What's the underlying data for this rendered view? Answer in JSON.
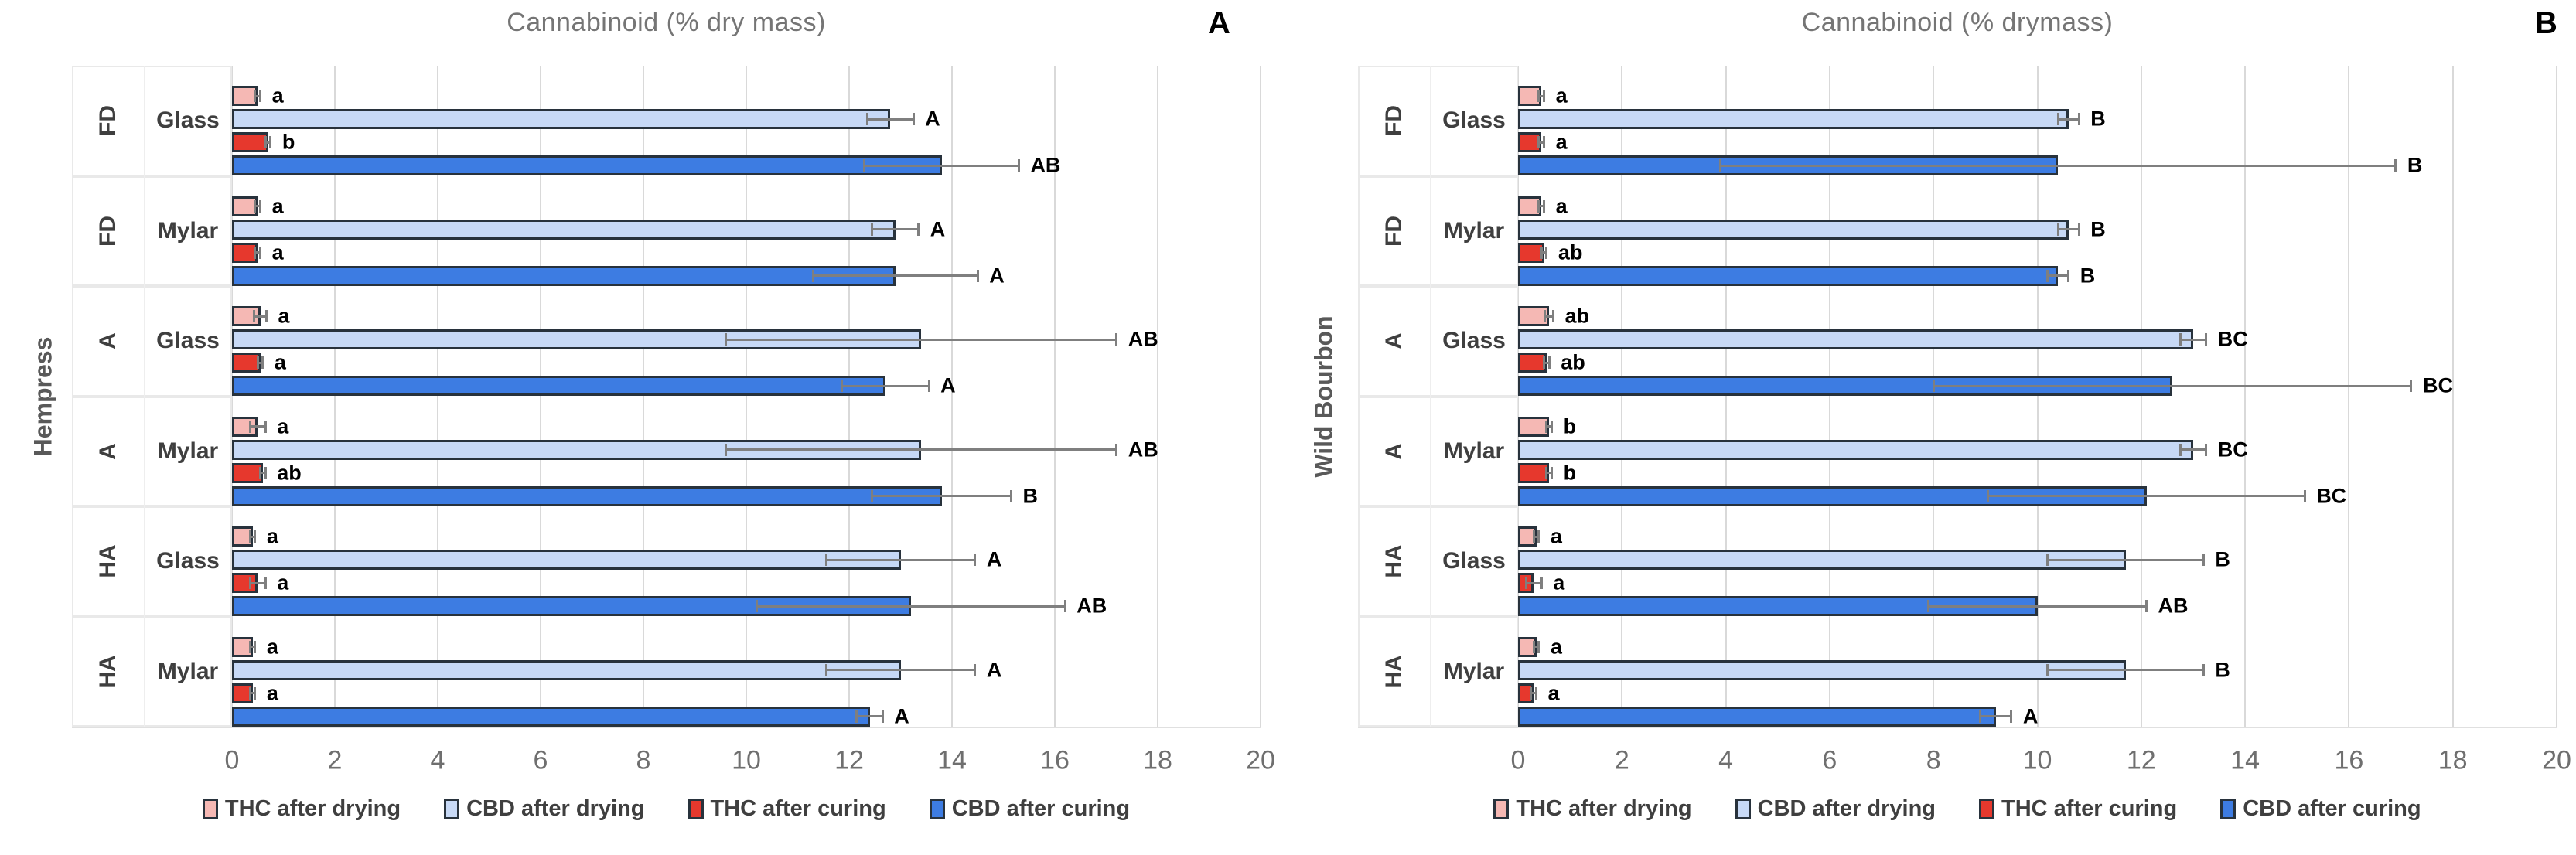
{
  "styles": {
    "bar_border": "#28323c",
    "grid_color": "#d9d9d9",
    "error_color": "#7f7f7f",
    "title_color": "#757575",
    "tick_color": "#6f6f6f",
    "label_color": "#3f3f3f",
    "letter_color": "#000000",
    "background": "#ffffff"
  },
  "legend": {
    "items": [
      {
        "label": "THC after drying",
        "color": "#f5b8b4"
      },
      {
        "label": "CBD after drying",
        "color": "#c7d9f6"
      },
      {
        "label": "THC after curing",
        "color": "#e6382d"
      },
      {
        "label": "CBD after curing",
        "color": "#3d7ce2"
      }
    ]
  },
  "chart_data": [
    {
      "type": "bar",
      "orientation": "horizontal",
      "panel_letter": "A",
      "title": "Cannabinoid (% dry mass)",
      "variety": "Hempress",
      "xlim": [
        0,
        20
      ],
      "xticks": [
        0,
        2,
        4,
        6,
        8,
        10,
        12,
        14,
        16,
        18,
        20
      ],
      "grid": true,
      "series_order": [
        "THC after drying",
        "CBD after drying",
        "THC after curing",
        "CBD after curing"
      ],
      "groups": [
        {
          "storage": "FD",
          "container": "Glass",
          "bars": [
            {
              "series": "THC after drying",
              "value": 0.5,
              "error": 0.05,
              "letter": "a"
            },
            {
              "series": "CBD after drying",
              "value": 12.8,
              "error": 0.45,
              "letter": "A"
            },
            {
              "series": "THC after curing",
              "value": 0.7,
              "error": 0.05,
              "letter": "b"
            },
            {
              "series": "CBD after curing",
              "value": 13.8,
              "error": 1.5,
              "letter": "AB"
            }
          ]
        },
        {
          "storage": "FD",
          "container": "Mylar",
          "bars": [
            {
              "series": "THC after drying",
              "value": 0.5,
              "error": 0.05,
              "letter": "a"
            },
            {
              "series": "CBD after drying",
              "value": 12.9,
              "error": 0.45,
              "letter": "A"
            },
            {
              "series": "THC after curing",
              "value": 0.5,
              "error": 0.05,
              "letter": "a"
            },
            {
              "series": "CBD after curing",
              "value": 12.9,
              "error": 1.6,
              "letter": "A"
            }
          ]
        },
        {
          "storage": "A",
          "container": "Glass",
          "bars": [
            {
              "series": "THC after drying",
              "value": 0.55,
              "error": 0.12,
              "letter": "a"
            },
            {
              "series": "CBD after drying",
              "value": 13.4,
              "error": 3.8,
              "letter": "AB"
            },
            {
              "series": "THC after curing",
              "value": 0.55,
              "error": 0.05,
              "letter": "a"
            },
            {
              "series": "CBD after curing",
              "value": 12.7,
              "error": 0.85,
              "letter": "A"
            }
          ]
        },
        {
          "storage": "A",
          "container": "Mylar",
          "bars": [
            {
              "series": "THC after drying",
              "value": 0.5,
              "error": 0.15,
              "letter": "a"
            },
            {
              "series": "CBD after drying",
              "value": 13.4,
              "error": 3.8,
              "letter": "AB"
            },
            {
              "series": "THC after curing",
              "value": 0.6,
              "error": 0.05,
              "letter": "ab"
            },
            {
              "series": "CBD after curing",
              "value": 13.8,
              "error": 1.35,
              "letter": "B"
            }
          ]
        },
        {
          "storage": "HA",
          "container": "Glass",
          "bars": [
            {
              "series": "THC after drying",
              "value": 0.4,
              "error": 0.05,
              "letter": "a"
            },
            {
              "series": "CBD after drying",
              "value": 13.0,
              "error": 1.45,
              "letter": "A"
            },
            {
              "series": "THC after curing",
              "value": 0.5,
              "error": 0.15,
              "letter": "a"
            },
            {
              "series": "CBD after curing",
              "value": 13.2,
              "error": 3.0,
              "letter": "AB"
            }
          ]
        },
        {
          "storage": "HA",
          "container": "Mylar",
          "bars": [
            {
              "series": "THC after drying",
              "value": 0.4,
              "error": 0.05,
              "letter": "a"
            },
            {
              "series": "CBD after drying",
              "value": 13.0,
              "error": 1.45,
              "letter": "A"
            },
            {
              "series": "THC after curing",
              "value": 0.4,
              "error": 0.05,
              "letter": "a"
            },
            {
              "series": "CBD after curing",
              "value": 12.4,
              "error": 0.25,
              "letter": "A"
            }
          ]
        }
      ]
    },
    {
      "type": "bar",
      "orientation": "horizontal",
      "panel_letter": "B",
      "title": "Cannabinoid (% drymass)",
      "variety": "Wild Bourbon",
      "xlim": [
        0,
        20
      ],
      "xticks": [
        0,
        2,
        4,
        6,
        8,
        10,
        12,
        14,
        16,
        18,
        20
      ],
      "grid": true,
      "series_order": [
        "THC after drying",
        "CBD after drying",
        "THC after curing",
        "CBD after curing"
      ],
      "groups": [
        {
          "storage": "FD",
          "container": "Glass",
          "bars": [
            {
              "series": "THC after drying",
              "value": 0.45,
              "error": 0.05,
              "letter": "a"
            },
            {
              "series": "CBD after drying",
              "value": 10.6,
              "error": 0.2,
              "letter": "B"
            },
            {
              "series": "THC after curing",
              "value": 0.45,
              "error": 0.05,
              "letter": "a"
            },
            {
              "series": "CBD after curing",
              "value": 10.4,
              "error": 6.5,
              "letter": "B"
            }
          ]
        },
        {
          "storage": "FD",
          "container": "Mylar",
          "bars": [
            {
              "series": "THC after drying",
              "value": 0.45,
              "error": 0.05,
              "letter": "a"
            },
            {
              "series": "CBD after drying",
              "value": 10.6,
              "error": 0.2,
              "letter": "B"
            },
            {
              "series": "THC after curing",
              "value": 0.5,
              "error": 0.05,
              "letter": "ab"
            },
            {
              "series": "CBD after curing",
              "value": 10.4,
              "error": 0.2,
              "letter": "B"
            }
          ]
        },
        {
          "storage": "A",
          "container": "Glass",
          "bars": [
            {
              "series": "THC after drying",
              "value": 0.6,
              "error": 0.08,
              "letter": "ab"
            },
            {
              "series": "CBD after drying",
              "value": 13.0,
              "error": 0.25,
              "letter": "BC"
            },
            {
              "series": "THC after curing",
              "value": 0.55,
              "error": 0.05,
              "letter": "ab"
            },
            {
              "series": "CBD after curing",
              "value": 12.6,
              "error": 4.6,
              "letter": "BC"
            }
          ]
        },
        {
          "storage": "A",
          "container": "Mylar",
          "bars": [
            {
              "series": "THC after drying",
              "value": 0.6,
              "error": 0.05,
              "letter": "b"
            },
            {
              "series": "CBD after drying",
              "value": 13.0,
              "error": 0.25,
              "letter": "BC"
            },
            {
              "series": "THC after curing",
              "value": 0.6,
              "error": 0.05,
              "letter": "b"
            },
            {
              "series": "CBD after curing",
              "value": 12.1,
              "error": 3.05,
              "letter": "BC"
            }
          ]
        },
        {
          "storage": "HA",
          "container": "Glass",
          "bars": [
            {
              "series": "THC after drying",
              "value": 0.35,
              "error": 0.05,
              "letter": "a"
            },
            {
              "series": "CBD after drying",
              "value": 11.7,
              "error": 1.5,
              "letter": "B"
            },
            {
              "series": "THC after curing",
              "value": 0.3,
              "error": 0.15,
              "letter": "a"
            },
            {
              "series": "CBD after curing",
              "value": 10.0,
              "error": 2.1,
              "letter": "AB"
            }
          ]
        },
        {
          "storage": "HA",
          "container": "Mylar",
          "bars": [
            {
              "series": "THC after drying",
              "value": 0.35,
              "error": 0.05,
              "letter": "a"
            },
            {
              "series": "CBD after drying",
              "value": 11.7,
              "error": 1.5,
              "letter": "B"
            },
            {
              "series": "THC after curing",
              "value": 0.3,
              "error": 0.05,
              "letter": "a"
            },
            {
              "series": "CBD after curing",
              "value": 9.2,
              "error": 0.3,
              "letter": "A"
            }
          ]
        }
      ]
    }
  ]
}
